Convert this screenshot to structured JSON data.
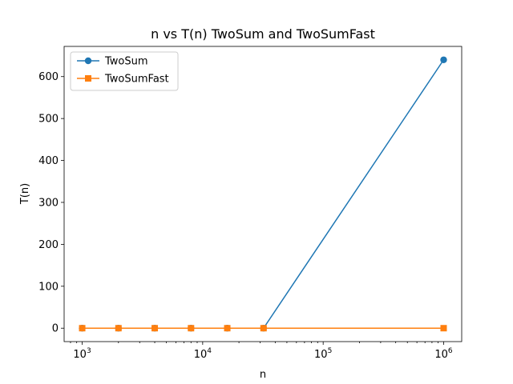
{
  "chart_data": {
    "type": "line",
    "title": "n vs T(n) TwoSum and TwoSumFast",
    "xlabel": "n",
    "ylabel": "T(n)",
    "x_scale": "log",
    "xlim": [
      708,
      1412000
    ],
    "ylim": [
      -32,
      672
    ],
    "x_ticks": [
      {
        "value": 1000,
        "base": "10",
        "exp": "3"
      },
      {
        "value": 10000,
        "base": "10",
        "exp": "4"
      },
      {
        "value": 100000,
        "base": "10",
        "exp": "5"
      },
      {
        "value": 1000000,
        "base": "10",
        "exp": "6"
      }
    ],
    "y_ticks": [
      {
        "value": 0,
        "label": "0"
      },
      {
        "value": 100,
        "label": "100"
      },
      {
        "value": 200,
        "label": "200"
      },
      {
        "value": 300,
        "label": "300"
      },
      {
        "value": 400,
        "label": "400"
      },
      {
        "value": 500,
        "label": "500"
      },
      {
        "value": 600,
        "label": "600"
      }
    ],
    "grid": false,
    "legend_position": "top-left",
    "series": [
      {
        "name": "TwoSum",
        "color": "#1f77b4",
        "marker": "circle",
        "points": [
          {
            "x": 1000,
            "y": 0
          },
          {
            "x": 2000,
            "y": 0
          },
          {
            "x": 4000,
            "y": 0
          },
          {
            "x": 8000,
            "y": 0
          },
          {
            "x": 16000,
            "y": 0
          },
          {
            "x": 32000,
            "y": 0
          },
          {
            "x": 1000000,
            "y": 640
          }
        ]
      },
      {
        "name": "TwoSumFast",
        "color": "#ff7f0e",
        "marker": "square",
        "points": [
          {
            "x": 1000,
            "y": 0
          },
          {
            "x": 2000,
            "y": 0
          },
          {
            "x": 4000,
            "y": 0
          },
          {
            "x": 8000,
            "y": 0
          },
          {
            "x": 16000,
            "y": 0
          },
          {
            "x": 32000,
            "y": 0
          },
          {
            "x": 1000000,
            "y": 0
          }
        ]
      }
    ]
  }
}
